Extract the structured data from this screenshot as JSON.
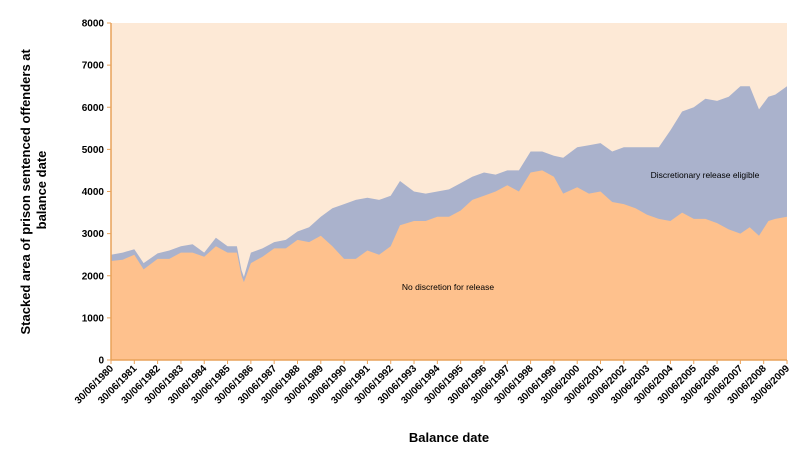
{
  "chart_data": {
    "type": "area",
    "stacked": true,
    "xlabel": "Balance date",
    "ylabel": "Stacked area of prison sentenced offenders at balance date",
    "ylim": [
      0,
      8000
    ],
    "yticks": [
      "0",
      "1000",
      "2000",
      "3000",
      "4000",
      "5000",
      "6000",
      "7000",
      "8000"
    ],
    "xticks": [
      "30/06/1980",
      "30/06/1981",
      "30/06/1982",
      "30/06/1983",
      "30/06/1984",
      "30/06/1985",
      "30/06/1986",
      "30/06/1987",
      "30/06/1988",
      "30/06/1989",
      "30/06/1990",
      "30/06/1991",
      "30/06/1992",
      "30/06/1993",
      "30/06/1994",
      "30/06/1995",
      "30/06/1996",
      "30/06/1997",
      "30/06/1998",
      "30/06/1999",
      "30/06/2000",
      "30/06/2001",
      "30/06/2002",
      "30/06/2003",
      "30/06/2004",
      "30/06/2005",
      "30/06/2006",
      "30/06/2007",
      "30/06/2008",
      "30/06/2009"
    ],
    "grid": false,
    "legend": "none",
    "colors": {
      "plot_bg": "#fde9d6",
      "axis": "#e8a25a",
      "no_discretion": "#fec18d",
      "discretionary": "#aab2cc"
    },
    "x": [
      1980.5,
      1981.0,
      1981.5,
      1981.9,
      1982.5,
      1983.0,
      1983.5,
      1984.0,
      1984.5,
      1985.0,
      1985.5,
      1985.9,
      1986.1,
      1986.2,
      1986.5,
      1987.0,
      1987.5,
      1988.0,
      1988.5,
      1989.0,
      1989.5,
      1990.0,
      1990.5,
      1991.0,
      1991.5,
      1992.0,
      1992.5,
      1992.9,
      1993.5,
      1994.0,
      1994.5,
      1995.0,
      1995.5,
      1996.0,
      1996.5,
      1997.0,
      1997.5,
      1998.0,
      1998.5,
      1999.0,
      1999.5,
      1999.9,
      2000.5,
      2001.0,
      2001.5,
      2002.0,
      2002.5,
      2003.0,
      2003.5,
      2004.0,
      2004.5,
      2005.0,
      2005.5,
      2006.0,
      2006.5,
      2007.0,
      2007.5,
      2007.9,
      2008.3,
      2008.7,
      2009.0,
      2009.5
    ],
    "series": [
      {
        "name": "No discretion for release",
        "values": [
          2350,
          2380,
          2500,
          2150,
          2400,
          2400,
          2550,
          2550,
          2450,
          2700,
          2550,
          2550,
          2000,
          1850,
          2300,
          2450,
          2650,
          2650,
          2850,
          2800,
          2950,
          2700,
          2400,
          2400,
          2600,
          2500,
          2700,
          3200,
          3300,
          3300,
          3400,
          3400,
          3550,
          3800,
          3900,
          4000,
          4150,
          4000,
          4450,
          4500,
          4350,
          3950,
          4100,
          3950,
          4000,
          3750,
          3700,
          3600,
          3450,
          3350,
          3300,
          3500,
          3350,
          3350,
          3250,
          3100,
          3000,
          3150,
          2950,
          3300,
          3350,
          3400
        ]
      },
      {
        "name": "Discretionary release eligible",
        "values": [
          150,
          170,
          130,
          150,
          130,
          200,
          150,
          200,
          100,
          200,
          150,
          150,
          130,
          120,
          250,
          200,
          150,
          200,
          200,
          350,
          450,
          900,
          1300,
          1400,
          1250,
          1300,
          1200,
          1050,
          700,
          650,
          600,
          650,
          650,
          550,
          550,
          400,
          350,
          500,
          500,
          450,
          500,
          850,
          950,
          1150,
          1150,
          1200,
          1350,
          1450,
          1600,
          1700,
          2150,
          2400,
          2650,
          2850,
          2900,
          3150,
          3500,
          3350,
          3000,
          2950,
          2950,
          3100
        ]
      }
    ],
    "annotations": [
      "Discretionary release eligible",
      "No discretion for release"
    ]
  }
}
